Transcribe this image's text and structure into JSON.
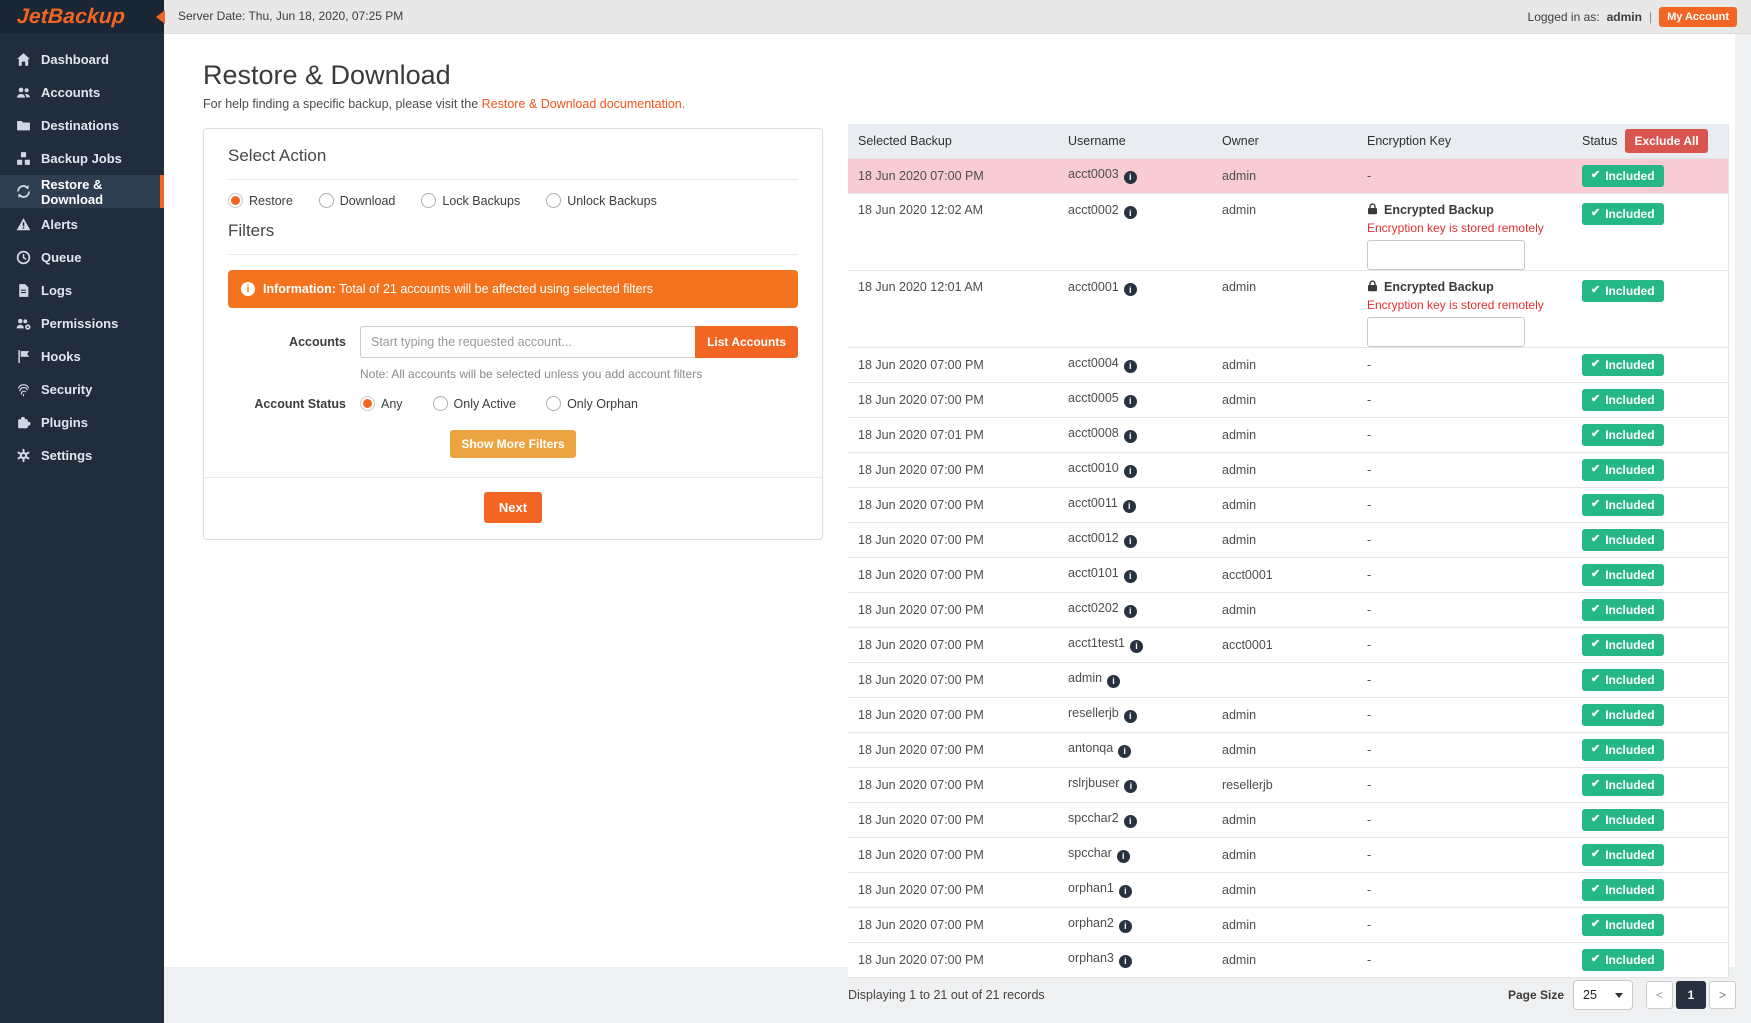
{
  "colors": {
    "accent": "#f26522",
    "banner_orange": "#f4731f",
    "warning_button": "#eba43f",
    "success_green": "#26b786",
    "danger_red": "#d9534f",
    "highlight_row_pink": "#f8ccd2",
    "sidebar_bg": "#212d3c"
  },
  "icons": {
    "info_glyph": "i",
    "check_glyph": "✔"
  },
  "topbar": {
    "server_date": "Server Date: Thu, Jun 18, 2020, 07:25 PM",
    "logged_in_prefix": "Logged in as:",
    "logged_in_user": "admin",
    "separator": "|",
    "my_account_label": "My Account"
  },
  "sidebar": {
    "logo": "JetBackup",
    "items": [
      {
        "label": "Dashboard",
        "icon": "home-icon",
        "active": false
      },
      {
        "label": "Accounts",
        "icon": "users-icon",
        "active": false
      },
      {
        "label": "Destinations",
        "icon": "folder-icon",
        "active": false
      },
      {
        "label": "Backup Jobs",
        "icon": "cubes-icon",
        "active": false
      },
      {
        "label": "Restore & Download",
        "icon": "sync-icon",
        "active": true
      },
      {
        "label": "Alerts",
        "icon": "warning-icon",
        "active": false
      },
      {
        "label": "Queue",
        "icon": "clock-icon",
        "active": false
      },
      {
        "label": "Logs",
        "icon": "file-icon",
        "active": false
      },
      {
        "label": "Permissions",
        "icon": "users-gear-icon",
        "active": false
      },
      {
        "label": "Hooks",
        "icon": "flag-icon",
        "active": false
      },
      {
        "label": "Security",
        "icon": "fingerprint-icon",
        "active": false
      },
      {
        "label": "Plugins",
        "icon": "puzzle-icon",
        "active": false
      },
      {
        "label": "Settings",
        "icon": "gear-icon",
        "active": false
      }
    ]
  },
  "page": {
    "title": "Restore & Download",
    "help_prefix": "For help finding a specific backup, please visit the ",
    "help_link": "Restore & Download documentation."
  },
  "action_panel": {
    "select_action_title": "Select Action",
    "action_options": [
      {
        "label": "Restore",
        "selected": true
      },
      {
        "label": "Download",
        "selected": false
      },
      {
        "label": "Lock Backups",
        "selected": false
      },
      {
        "label": "Unlock Backups",
        "selected": false
      }
    ],
    "filters_title": "Filters",
    "info_banner": {
      "bold": "Information:",
      "text": " Total of 21 accounts will be affected using selected filters"
    },
    "accounts_label": "Accounts",
    "accounts_placeholder": "Start typing the requested account...",
    "list_accounts_label": "List Accounts",
    "accounts_note": "Note: All accounts will be selected unless you add account filters",
    "account_status_label": "Account Status",
    "status_options": [
      {
        "label": "Any",
        "selected": true
      },
      {
        "label": "Only Active",
        "selected": false
      },
      {
        "label": "Only Orphan",
        "selected": false
      }
    ],
    "show_more_filters_label": "Show More Filters",
    "next_label": "Next"
  },
  "table": {
    "columns": [
      "Selected Backup",
      "Username",
      "Owner",
      "Encryption Key",
      "Status"
    ],
    "exclude_all_label": "Exclude All",
    "included_label": "Included",
    "encrypted_label": "Encrypted Backup",
    "encrypted_note": "Encryption key is stored remotely",
    "rows": [
      {
        "date": "18 Jun 2020 07:00 PM",
        "username": "acct0003",
        "owner": "admin",
        "encryption": "-",
        "highlight": true
      },
      {
        "date": "18 Jun 2020 12:02 AM",
        "username": "acct0002",
        "owner": "admin",
        "encryption": "encrypted",
        "highlight": false
      },
      {
        "date": "18 Jun 2020 12:01 AM",
        "username": "acct0001",
        "owner": "admin",
        "encryption": "encrypted",
        "highlight": false
      },
      {
        "date": "18 Jun 2020 07:00 PM",
        "username": "acct0004",
        "owner": "admin",
        "encryption": "-",
        "highlight": false
      },
      {
        "date": "18 Jun 2020 07:00 PM",
        "username": "acct0005",
        "owner": "admin",
        "encryption": "-",
        "highlight": false
      },
      {
        "date": "18 Jun 2020 07:01 PM",
        "username": "acct0008",
        "owner": "admin",
        "encryption": "-",
        "highlight": false
      },
      {
        "date": "18 Jun 2020 07:00 PM",
        "username": "acct0010",
        "owner": "admin",
        "encryption": "-",
        "highlight": false
      },
      {
        "date": "18 Jun 2020 07:00 PM",
        "username": "acct0011",
        "owner": "admin",
        "encryption": "-",
        "highlight": false
      },
      {
        "date": "18 Jun 2020 07:00 PM",
        "username": "acct0012",
        "owner": "admin",
        "encryption": "-",
        "highlight": false
      },
      {
        "date": "18 Jun 2020 07:00 PM",
        "username": "acct0101",
        "owner": "acct0001",
        "encryption": "-",
        "highlight": false
      },
      {
        "date": "18 Jun 2020 07:00 PM",
        "username": "acct0202",
        "owner": "admin",
        "encryption": "-",
        "highlight": false
      },
      {
        "date": "18 Jun 2020 07:00 PM",
        "username": "acct1test1",
        "owner": "acct0001",
        "encryption": "-",
        "highlight": false
      },
      {
        "date": "18 Jun 2020 07:00 PM",
        "username": "admin",
        "owner": "",
        "encryption": "-",
        "highlight": false
      },
      {
        "date": "18 Jun 2020 07:00 PM",
        "username": "resellerjb",
        "owner": "admin",
        "encryption": "-",
        "highlight": false
      },
      {
        "date": "18 Jun 2020 07:00 PM",
        "username": "antonqa",
        "owner": "admin",
        "encryption": "-",
        "highlight": false
      },
      {
        "date": "18 Jun 2020 07:00 PM",
        "username": "rslrjbuser",
        "owner": "resellerjb",
        "encryption": "-",
        "highlight": false
      },
      {
        "date": "18 Jun 2020 07:00 PM",
        "username": "spcchar2",
        "owner": "admin",
        "encryption": "-",
        "highlight": false
      },
      {
        "date": "18 Jun 2020 07:00 PM",
        "username": "spcchar",
        "owner": "admin",
        "encryption": "-",
        "highlight": false
      },
      {
        "date": "18 Jun 2020 07:00 PM",
        "username": "orphan1",
        "owner": "admin",
        "encryption": "-",
        "highlight": false
      },
      {
        "date": "18 Jun 2020 07:00 PM",
        "username": "orphan2",
        "owner": "admin",
        "encryption": "-",
        "highlight": false
      },
      {
        "date": "18 Jun 2020 07:00 PM",
        "username": "orphan3",
        "owner": "admin",
        "encryption": "-",
        "highlight": false
      }
    ]
  },
  "footer": {
    "records_text": "Displaying 1 to 21 out of 21 records",
    "page_size_label": "Page Size",
    "page_size_value": "25",
    "prev_label": "<",
    "page_number": "1",
    "next_label": ">"
  }
}
